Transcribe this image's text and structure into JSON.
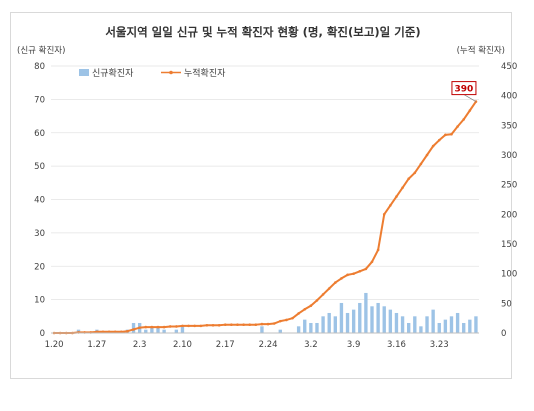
{
  "chart_data": {
    "type": "bar+line",
    "title": "서울지역 일일 신규 및 누적 확진자 현황 (명, 확진(보고)일 기준)",
    "y_left_unit": "(신규 확진자)",
    "y_right_unit": "(누적 확진자)",
    "y_left_lim": [
      0,
      80
    ],
    "y_left_ticks": [
      0,
      10,
      20,
      30,
      40,
      50,
      60,
      70,
      80
    ],
    "y_right_lim": [
      0,
      450
    ],
    "y_right_ticks": [
      0,
      50,
      100,
      150,
      200,
      250,
      300,
      350,
      400,
      450
    ],
    "x_tick_labels": [
      "1.20",
      "1.27",
      "2.3",
      "2.10",
      "2.17",
      "2.24",
      "3.2",
      "3.9",
      "3.16",
      "3.23"
    ],
    "x_tick_index": [
      0,
      7,
      14,
      21,
      28,
      35,
      42,
      49,
      56,
      63
    ],
    "n_days": 70,
    "legend_position": "top-left",
    "series": [
      {
        "name": "신규확진자",
        "type": "bar",
        "axis": "left",
        "color": "#9dc3e6",
        "values": [
          0,
          0,
          0,
          0,
          1,
          0,
          0,
          1,
          0,
          0,
          0,
          0,
          1,
          3,
          3,
          1,
          2,
          2,
          1,
          0,
          1,
          2,
          0,
          0,
          0,
          0,
          0,
          0,
          0,
          0,
          0,
          0,
          0,
          0,
          2,
          0,
          0,
          1,
          0,
          0,
          2,
          4,
          3,
          3,
          5,
          6,
          5,
          9,
          6,
          7,
          9,
          12,
          8,
          9,
          8,
          7,
          6,
          5,
          3,
          5,
          2,
          5,
          7,
          3,
          4,
          5,
          6,
          3,
          4,
          5
        ]
      },
      {
        "name": "누적확진자",
        "type": "line",
        "axis": "right",
        "color": "#ed7d31",
        "values": [
          0,
          0,
          0,
          0,
          1,
          1,
          1,
          2,
          2,
          2,
          2,
          2,
          3,
          6,
          9,
          10,
          10,
          10,
          10,
          11,
          11,
          12,
          12,
          12,
          12,
          13,
          13,
          13,
          14,
          14,
          14,
          14,
          14,
          14,
          15,
          15,
          16,
          20,
          22,
          25,
          33,
          40,
          46,
          55,
          65,
          75,
          85,
          92,
          98,
          100,
          104,
          108,
          120,
          140,
          200,
          215,
          230,
          245,
          260,
          270,
          285,
          300,
          315,
          325,
          334,
          335,
          348,
          360,
          375,
          390
        ]
      }
    ],
    "annotations": [
      {
        "text": "390",
        "series": "누적확진자",
        "at_index": 69
      }
    ]
  }
}
